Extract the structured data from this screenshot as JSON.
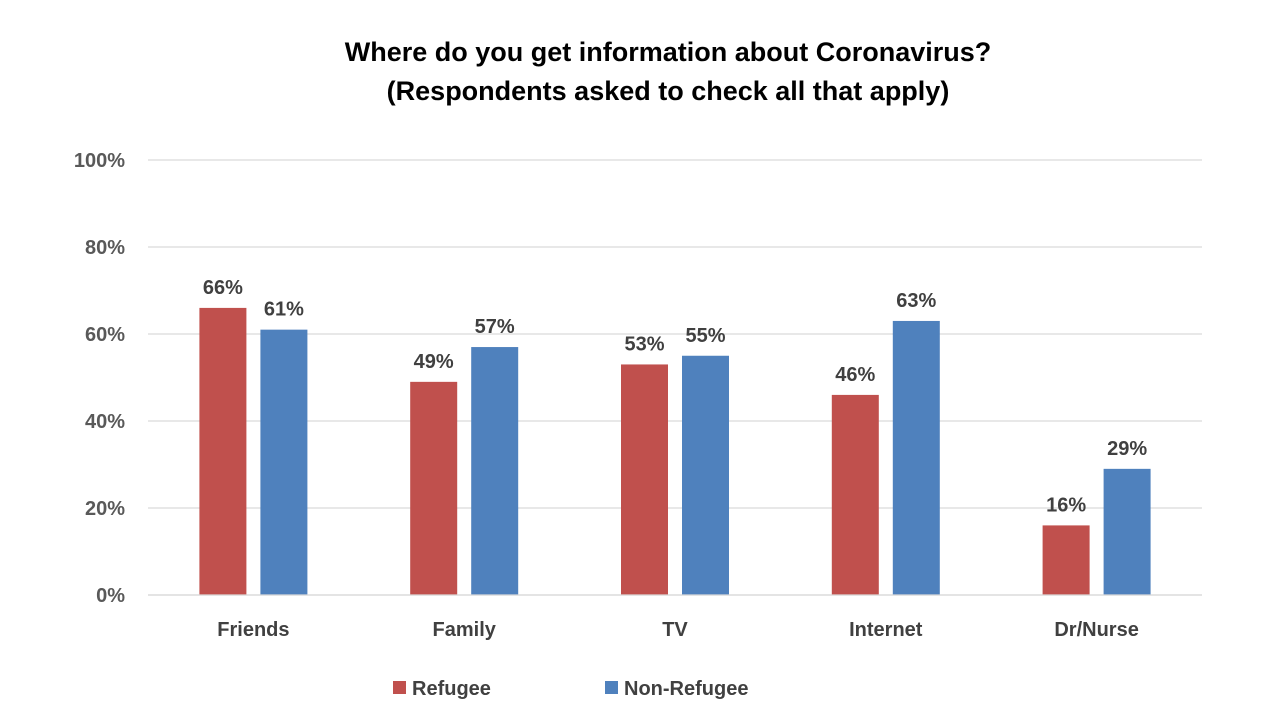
{
  "chart_data": {
    "type": "bar",
    "title": "Where do you get information about Coronavirus?",
    "subtitle": "(Respondents asked to check all that apply)",
    "categories": [
      "Friends",
      "Family",
      "TV",
      "Internet",
      "Dr/Nurse"
    ],
    "series": [
      {
        "name": "Refugee",
        "color": "#c0504d",
        "values": [
          66,
          49,
          53,
          46,
          16
        ],
        "labels": [
          "66%",
          "49%",
          "53%",
          "46%",
          "16%"
        ]
      },
      {
        "name": "Non-Refugee",
        "color": "#4f81bd",
        "values": [
          61,
          57,
          55,
          63,
          29
        ],
        "labels": [
          "61%",
          "57%",
          "55%",
          "63%",
          "29%"
        ]
      }
    ],
    "ylim": [
      0,
      100
    ],
    "yticks": [
      0,
      20,
      40,
      60,
      80,
      100
    ],
    "ytick_labels": [
      "0%",
      "20%",
      "40%",
      "60%",
      "80%",
      "100%"
    ],
    "xlabel": "",
    "ylabel": "",
    "grid": true,
    "legend_position": "bottom"
  }
}
